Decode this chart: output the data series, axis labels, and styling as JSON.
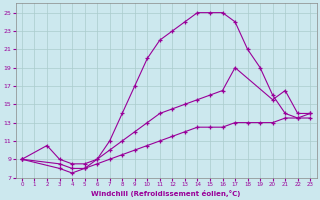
{
  "xlabel": "Windchill (Refroidissement éolien,°C)",
  "background_color": "#cce8ee",
  "line_color": "#990099",
  "grid_color": "#aacccc",
  "xlim": [
    -0.5,
    23.5
  ],
  "ylim": [
    7,
    26
  ],
  "xticks": [
    0,
    1,
    2,
    3,
    4,
    5,
    6,
    7,
    8,
    9,
    10,
    11,
    12,
    13,
    14,
    15,
    16,
    17,
    18,
    19,
    20,
    21,
    22,
    23
  ],
  "yticks": [
    7,
    9,
    11,
    13,
    15,
    17,
    19,
    21,
    23,
    25
  ],
  "line1_x": [
    0,
    2,
    3,
    4,
    5,
    6,
    7,
    8,
    9,
    10,
    11,
    12,
    13,
    14,
    15,
    16,
    17,
    18,
    19,
    20,
    21,
    22,
    23
  ],
  "line1_y": [
    9,
    10.5,
    9,
    8.5,
    8.5,
    9,
    11,
    14,
    17,
    20,
    22,
    23,
    24,
    25,
    25,
    25,
    24,
    21,
    19,
    16,
    14,
    13.5,
    14
  ],
  "line2_x": [
    0,
    3,
    4,
    5,
    6,
    7,
    8,
    9,
    10,
    11,
    12,
    13,
    14,
    15,
    16,
    17,
    20,
    21,
    22,
    23
  ],
  "line2_y": [
    9,
    8.5,
    8,
    8,
    9,
    10,
    11,
    12,
    13,
    14,
    14.5,
    15,
    15.5,
    16,
    16.5,
    19,
    15.5,
    16.5,
    14,
    14
  ],
  "line3_x": [
    0,
    3,
    4,
    5,
    6,
    7,
    8,
    9,
    10,
    11,
    12,
    13,
    14,
    15,
    16,
    17,
    18,
    19,
    20,
    21,
    22,
    23
  ],
  "line3_y": [
    9,
    8,
    7.5,
    8,
    8.5,
    9,
    9.5,
    10,
    10.5,
    11,
    11.5,
    12,
    12.5,
    12.5,
    12.5,
    13,
    13,
    13,
    13,
    13.5,
    13.5,
    13.5
  ]
}
